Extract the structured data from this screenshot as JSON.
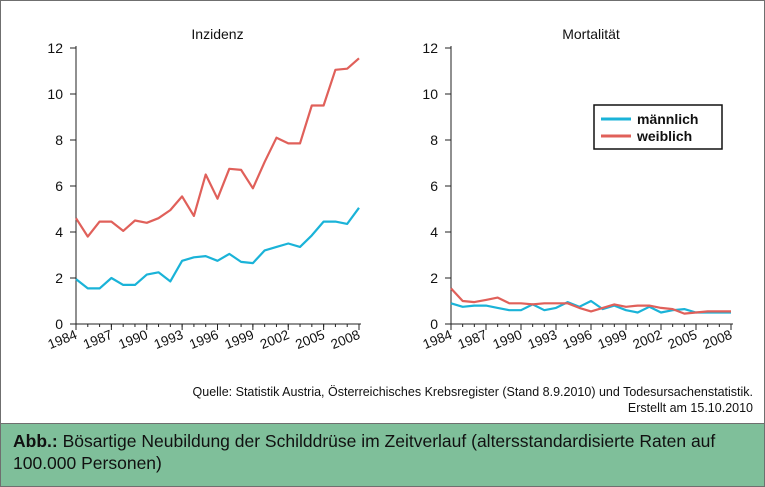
{
  "source_lines": [
    "Quelle: Statistik Austria, Österreichisches Krebsregister (Stand 8.9.2010) und Todesursachenstatistik.",
    "Erstellt am 15.10.2010"
  ],
  "caption": {
    "label": "Abb.:",
    "text": " Bösartige Neubildung der Schilddrüse im Zeitverlauf (altersstandardisierte Raten auf 100.000 Personen)"
  },
  "colors": {
    "maennlich": "#1ab3d8",
    "weiblich": "#e0605a"
  },
  "chart_data": [
    {
      "type": "line",
      "title": "Inzidenz",
      "x_tick_labels": [
        "1984",
        "1987",
        "1990",
        "1993",
        "1996",
        "1999",
        "2002",
        "2005",
        "2008"
      ],
      "ylim": [
        0,
        12
      ],
      "y_ticks": [
        0,
        2,
        4,
        6,
        8,
        10,
        12
      ],
      "x": [
        1984,
        1985,
        1986,
        1987,
        1988,
        1989,
        1990,
        1991,
        1992,
        1993,
        1994,
        1995,
        1996,
        1997,
        1998,
        1999,
        2000,
        2001,
        2002,
        2003,
        2004,
        2005,
        2006,
        2007,
        2008
      ],
      "series": [
        {
          "name": "männlich",
          "color": "#1ab3d8",
          "values": [
            1.95,
            1.55,
            1.55,
            2.0,
            1.7,
            1.7,
            2.15,
            2.25,
            1.85,
            2.75,
            2.9,
            2.95,
            2.75,
            3.05,
            2.7,
            2.65,
            3.2,
            3.35,
            3.5,
            3.35,
            3.85,
            4.45,
            4.45,
            4.35,
            5.05
          ]
        },
        {
          "name": "weiblich",
          "color": "#e0605a",
          "values": [
            4.6,
            3.8,
            4.45,
            4.45,
            4.05,
            4.5,
            4.4,
            4.6,
            4.95,
            5.55,
            4.7,
            6.5,
            5.45,
            6.75,
            6.7,
            5.9,
            7.05,
            8.1,
            7.85,
            7.85,
            9.5,
            9.5,
            11.05,
            11.1,
            11.55
          ]
        }
      ]
    },
    {
      "type": "line",
      "title": "Mortalität",
      "x_tick_labels": [
        "1984",
        "1987",
        "1990",
        "1993",
        "1996",
        "1999",
        "2002",
        "2005",
        "2008"
      ],
      "ylim": [
        0,
        12
      ],
      "y_ticks": [
        0,
        2,
        4,
        6,
        8,
        10,
        12
      ],
      "legend_placement": "top-right",
      "x": [
        1984,
        1985,
        1986,
        1987,
        1988,
        1989,
        1990,
        1991,
        1992,
        1993,
        1994,
        1995,
        1996,
        1997,
        1998,
        1999,
        2000,
        2001,
        2002,
        2003,
        2004,
        2005,
        2006,
        2007,
        2008
      ],
      "series": [
        {
          "name": "männlich",
          "color": "#1ab3d8",
          "values": [
            0.9,
            0.75,
            0.8,
            0.8,
            0.7,
            0.6,
            0.6,
            0.85,
            0.6,
            0.7,
            0.95,
            0.75,
            1.0,
            0.65,
            0.8,
            0.6,
            0.5,
            0.75,
            0.5,
            0.6,
            0.65,
            0.5,
            0.5,
            0.5,
            0.5
          ]
        },
        {
          "name": "weiblich",
          "color": "#e0605a",
          "values": [
            1.55,
            1.0,
            0.95,
            1.05,
            1.15,
            0.9,
            0.9,
            0.85,
            0.9,
            0.9,
            0.9,
            0.7,
            0.55,
            0.7,
            0.85,
            0.75,
            0.8,
            0.8,
            0.7,
            0.65,
            0.45,
            0.5,
            0.55,
            0.55,
            0.55
          ]
        }
      ]
    }
  ]
}
